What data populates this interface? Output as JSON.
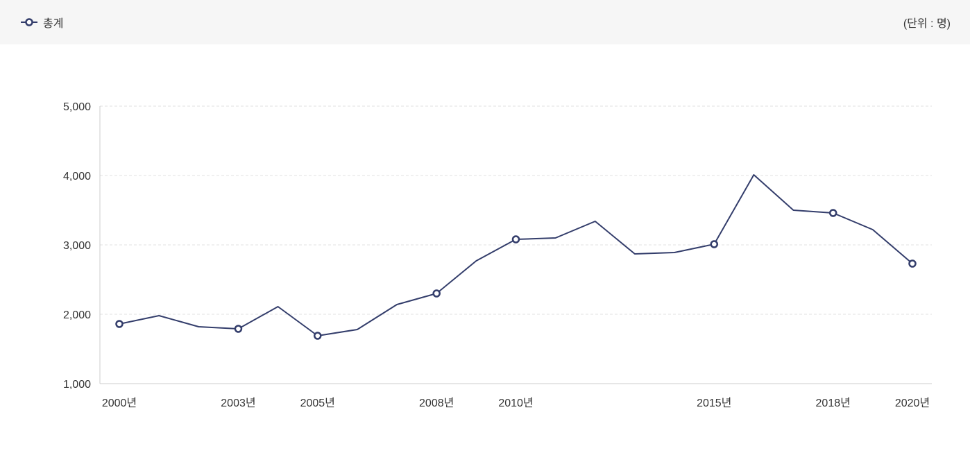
{
  "legend": {
    "label": "총계",
    "color": "#333d6b",
    "icon": "line-with-circle-marker-icon"
  },
  "unit_label": "(단위 : 명)",
  "chart_data": {
    "type": "line",
    "title": "",
    "xlabel": "",
    "ylabel": "",
    "ylim": [
      1000,
      5000
    ],
    "yticks": [
      1000,
      2000,
      3000,
      4000,
      5000
    ],
    "ytick_labels": [
      "1,000",
      "2,000",
      "3,000",
      "4,000",
      "5,000"
    ],
    "grid": "horizontal dashed",
    "legend_position": "top-left",
    "x": [
      "2000년",
      "2001년",
      "2002년",
      "2003년",
      "2004년",
      "2005년",
      "2006년",
      "2007년",
      "2008년",
      "2009년",
      "2010년",
      "2011년",
      "2012년",
      "2013년",
      "2014년",
      "2015년",
      "2016년",
      "2017년",
      "2018년",
      "2019년",
      "2020년"
    ],
    "x_tick_labels": [
      "2000년",
      "2003년",
      "2005년",
      "2008년",
      "2010년",
      "2015년",
      "2018년",
      "2020년"
    ],
    "marked_points": [
      "2000년",
      "2003년",
      "2005년",
      "2008년",
      "2010년",
      "2015년",
      "2018년",
      "2020년"
    ],
    "series": [
      {
        "name": "총계",
        "color": "#333d6b",
        "values": [
          1860,
          1980,
          1820,
          1790,
          2110,
          1690,
          1780,
          2140,
          2300,
          2770,
          3080,
          3100,
          3340,
          2870,
          2890,
          3010,
          4010,
          3500,
          3460,
          3220,
          2730
        ]
      }
    ]
  }
}
